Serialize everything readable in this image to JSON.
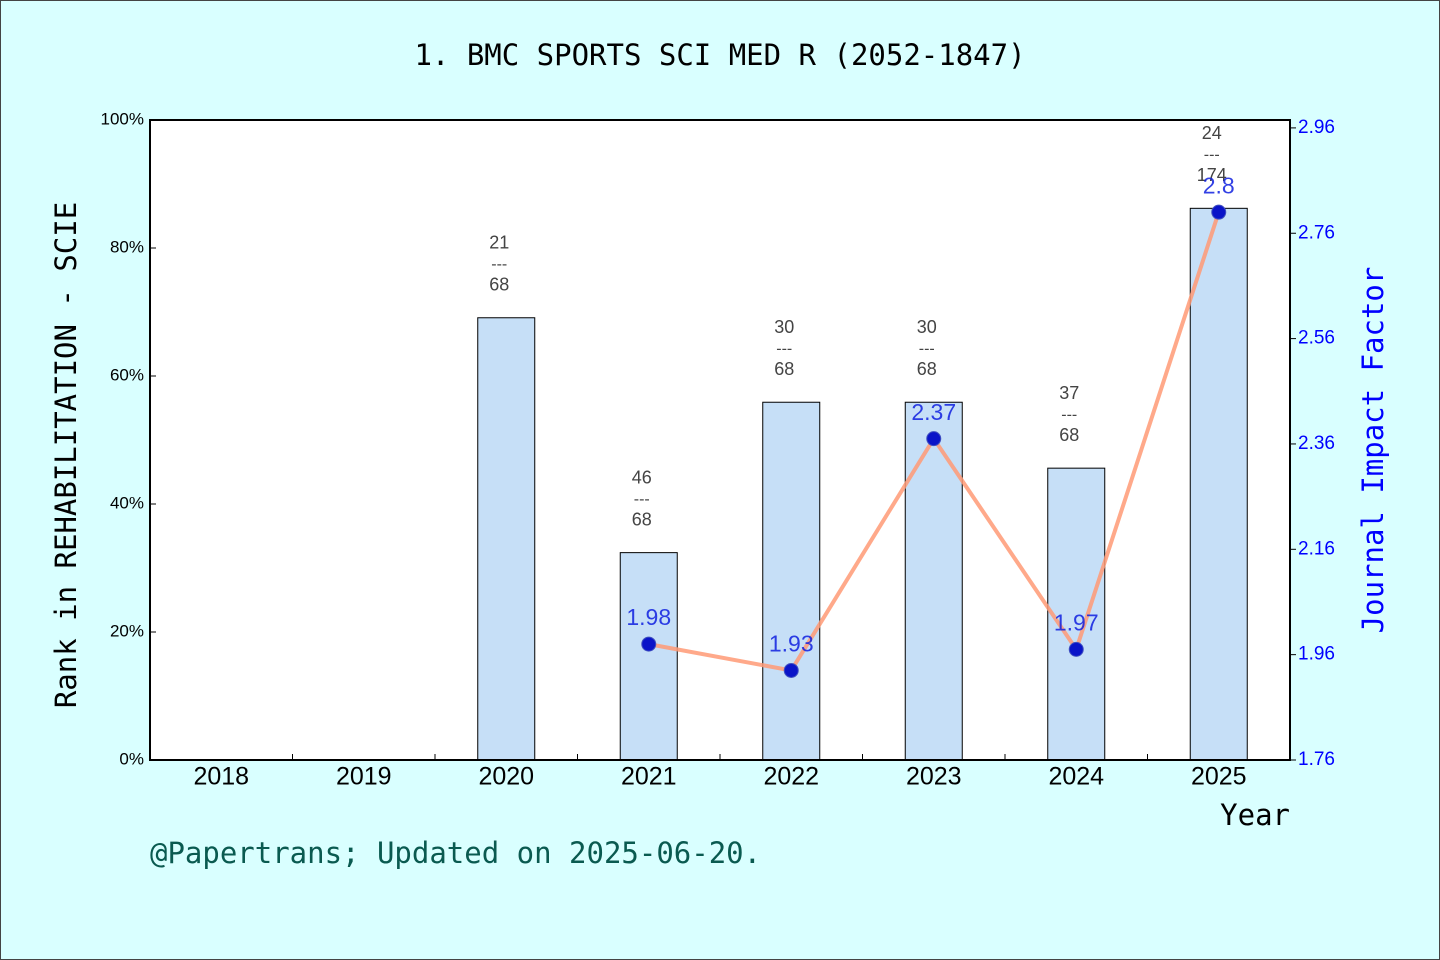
{
  "chart_data": {
    "type": "bar",
    "title": "1. BMC SPORTS SCI MED R (2052-1847)",
    "y_label": "Rank in REHABILITATION - SCIE",
    "y2_label": "Journal Impact Factor",
    "x_label": "Year",
    "footer": "@Papertrans; Updated on 2025-06-20.",
    "categories": [
      "2018",
      "2019",
      "2020",
      "2021",
      "2022",
      "2023",
      "2024",
      "2025"
    ],
    "series": [
      {
        "type": "bar",
        "color": "#c6dff7",
        "values": [
          null,
          null,
          69.1,
          32.4,
          55.9,
          55.9,
          45.6,
          86.2
        ]
      },
      {
        "type": "line",
        "axis": "y2",
        "color": "#ff9a76",
        "marker_color": "#0a14c8",
        "values": [
          null,
          null,
          null,
          1.98,
          1.93,
          2.37,
          1.97,
          2.8
        ]
      }
    ],
    "rank_labels": [
      null,
      null,
      {
        "rank": 21,
        "total": 68
      },
      {
        "rank": 46,
        "total": 68
      },
      {
        "rank": 30,
        "total": 68
      },
      {
        "rank": 30,
        "total": 68
      },
      {
        "rank": 37,
        "total": 68
      },
      {
        "rank": 24,
        "total": 174
      }
    ],
    "rank_separator": "---",
    "ylim": [
      0,
      100
    ],
    "yticks": [
      {
        "value": 0,
        "label": "0%"
      },
      {
        "value": 20,
        "label": "20%"
      },
      {
        "value": 40,
        "label": "40%"
      },
      {
        "value": 60,
        "label": "60%"
      },
      {
        "value": 80,
        "label": "80%"
      },
      {
        "value": 100,
        "label": "100%"
      }
    ],
    "y2lim": [
      1.76,
      2.975
    ],
    "y2ticks": [
      1.76,
      1.96,
      2.16,
      2.36,
      2.56,
      2.76,
      2.96
    ],
    "grid": false
  }
}
